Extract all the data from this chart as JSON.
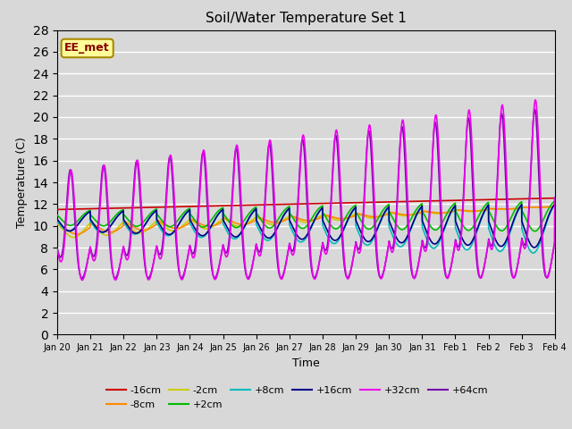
{
  "title": "Soil/Water Temperature Set 1",
  "xlabel": "Time",
  "ylabel": "Temperature (C)",
  "annotation": "EE_met",
  "ylim": [
    0,
    28
  ],
  "yticks": [
    0,
    2,
    4,
    6,
    8,
    10,
    12,
    14,
    16,
    18,
    20,
    22,
    24,
    26,
    28
  ],
  "bg_color": "#d8d8d8",
  "plot_bg_color": "#d8d8d8",
  "series": {
    "-16cm": {
      "color": "#cc0000",
      "lw": 1.2
    },
    "-8cm": {
      "color": "#ff8800",
      "lw": 1.2
    },
    "-2cm": {
      "color": "#cccc00",
      "lw": 1.2
    },
    "+2cm": {
      "color": "#00bb00",
      "lw": 1.2
    },
    "+8cm": {
      "color": "#00bbbb",
      "lw": 1.2
    },
    "+16cm": {
      "color": "#000088",
      "lw": 1.2
    },
    "+32cm": {
      "color": "#ee00ee",
      "lw": 1.2
    },
    "+64cm": {
      "color": "#7700aa",
      "lw": 1.2
    }
  },
  "legend_order": [
    "-16cm",
    "-8cm",
    "-2cm",
    "+2cm",
    "+8cm",
    "+16cm",
    "+32cm",
    "+64cm"
  ],
  "x_tick_labels": [
    "Jan 20",
    "Jan 21",
    "Jan 22",
    "Jan 23",
    "Jan 24",
    "Jan 25",
    "Jan 26",
    "Jan 27",
    "Jan 28",
    "Jan 29",
    "Jan 30",
    "Jan 31",
    "Feb 1",
    "Feb 2",
    "Feb 3",
    "Feb 4"
  ],
  "n_points": 3000
}
